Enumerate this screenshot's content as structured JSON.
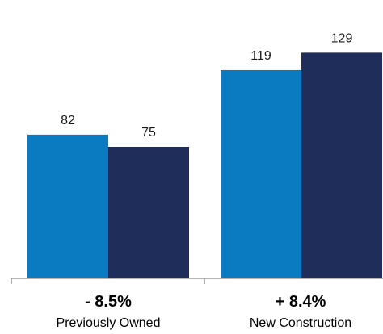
{
  "chart_data": {
    "type": "bar",
    "categories": [
      "Previously Owned",
      "New Construction"
    ],
    "category_changes": [
      "- 8.5%",
      "+ 8.4%"
    ],
    "series": [
      {
        "color": "#0a7bc1",
        "values": [
          82,
          119
        ]
      },
      {
        "color": "#1f2d5a",
        "values": [
          75,
          129
        ]
      }
    ],
    "value_labels": [
      [
        "82",
        "75"
      ],
      [
        "119",
        "129"
      ]
    ],
    "ylim": [
      0,
      150
    ],
    "grid": false,
    "legend": "none"
  }
}
